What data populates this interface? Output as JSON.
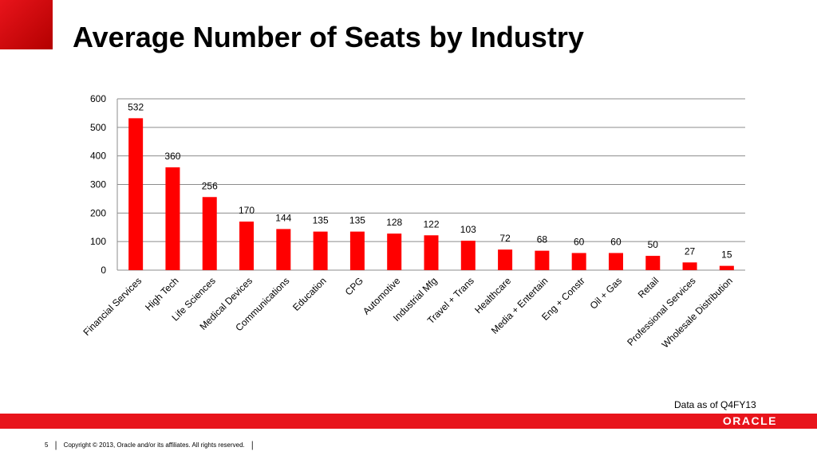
{
  "slide": {
    "title": "Average Number of Seats by Industry",
    "data_note": "Data as of Q4FY13",
    "logo_text": "ORACLE",
    "page_number": "5",
    "copyright": "Copyright © 2013, Oracle and/or its affiliates. All rights reserved.",
    "footer_separator": "|",
    "colors": {
      "brand_red": "#e8141b",
      "bar": "#ff0000",
      "grid": "#8c8c8c"
    }
  },
  "chart_data": {
    "type": "bar",
    "categories": [
      "Financial Services",
      "High Tech",
      "Life Sciences",
      "Medical Devices",
      "Communications",
      "Education",
      "CPG",
      "Automotive",
      "Industrial Mfg",
      "Travel + Trans",
      "Healthcare",
      "Media + Entertain",
      "Eng + Constr",
      "Oil + Gas",
      "Retail",
      "Professional Services",
      "Wholesale Distribution"
    ],
    "values": [
      532,
      360,
      256,
      170,
      144,
      135,
      135,
      128,
      122,
      103,
      72,
      68,
      60,
      60,
      50,
      27,
      15
    ],
    "ylim": [
      0,
      600
    ],
    "yticks": [
      0,
      100,
      200,
      300,
      400,
      500,
      600
    ],
    "grid": true,
    "data_labels": true,
    "legend": "none"
  }
}
